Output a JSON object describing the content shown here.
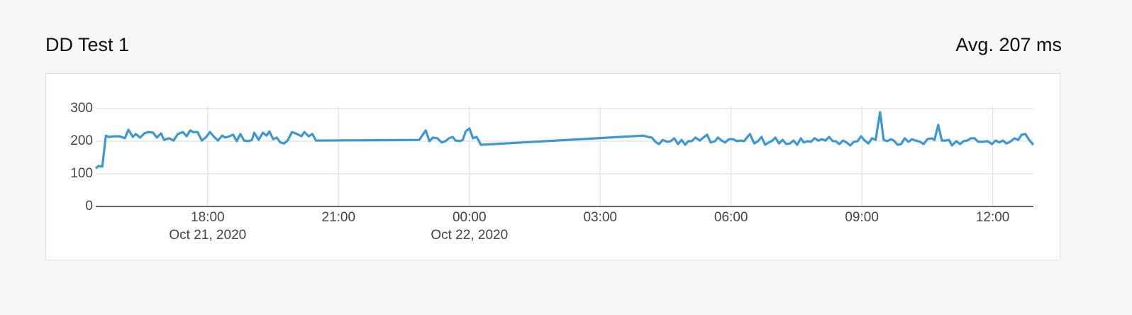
{
  "header": {
    "title": "DD Test 1",
    "summary": "Avg. 207 ms"
  },
  "chart_data": {
    "type": "line",
    "x": [
      "2020-10-21 15:26",
      "2020-10-21 15:30",
      "2020-10-21 15:35",
      "2020-10-21 15:40",
      "2020-10-21 15:44",
      "2020-10-21 15:51",
      "2020-10-21 15:59",
      "2020-10-21 16:06",
      "2020-10-21 16:11",
      "2020-10-21 16:17",
      "2020-10-21 16:21",
      "2020-10-21 16:27",
      "2020-10-21 16:33",
      "2020-10-21 16:38",
      "2020-10-21 16:45",
      "2020-10-21 16:50",
      "2020-10-21 16:56",
      "2020-10-21 17:00",
      "2020-10-21 17:07",
      "2020-10-21 17:13",
      "2020-10-21 17:19",
      "2020-10-21 17:26",
      "2020-10-21 17:31",
      "2020-10-21 17:36",
      "2020-10-21 17:40",
      "2020-10-21 17:46",
      "2020-10-21 17:52",
      "2020-10-21 17:58",
      "2020-10-21 18:03",
      "2020-10-21 18:09",
      "2020-10-21 18:14",
      "2020-10-21 18:20",
      "2020-10-21 18:24",
      "2020-10-21 18:30",
      "2020-10-21 18:35",
      "2020-10-21 18:40",
      "2020-10-21 18:45",
      "2020-10-21 18:50",
      "2020-10-21 18:56",
      "2020-10-21 19:01",
      "2020-10-21 19:04",
      "2020-10-21 19:10",
      "2020-10-21 19:16",
      "2020-10-21 19:21",
      "2020-10-21 19:25",
      "2020-10-21 19:30",
      "2020-10-21 19:35",
      "2020-10-21 19:40",
      "2020-10-21 19:45",
      "2020-10-21 19:50",
      "2020-10-21 19:56",
      "2020-10-21 20:03",
      "2020-10-21 20:09",
      "2020-10-21 20:13",
      "2020-10-21 20:19",
      "2020-10-21 20:24",
      "2020-10-21 20:29",
      "2020-10-21 22:51",
      "2020-10-21 23:00",
      "2020-10-21 23:05",
      "2020-10-21 23:10",
      "2020-10-21 23:16",
      "2020-10-21 23:22",
      "2020-10-21 23:27",
      "2020-10-21 23:32",
      "2020-10-21 23:37",
      "2020-10-21 23:41",
      "2020-10-21 23:47",
      "2020-10-21 23:51",
      "2020-10-21 23:55",
      "2020-10-22 00:00",
      "2020-10-22 00:05",
      "2020-10-22 00:10",
      "2020-10-22 00:16",
      "2020-10-22 03:59",
      "2020-10-22 04:06",
      "2020-10-22 04:11",
      "2020-10-22 04:16",
      "2020-10-22 04:21",
      "2020-10-22 04:26",
      "2020-10-22 04:32",
      "2020-10-22 04:37",
      "2020-10-22 04:42",
      "2020-10-22 04:47",
      "2020-10-22 04:52",
      "2020-10-22 04:57",
      "2020-10-22 05:01",
      "2020-10-22 05:06",
      "2020-10-22 05:11",
      "2020-10-22 05:17",
      "2020-10-22 05:22",
      "2020-10-22 05:27",
      "2020-10-22 05:32",
      "2020-10-22 05:38",
      "2020-10-22 05:42",
      "2020-10-22 05:47",
      "2020-10-22 05:52",
      "2020-10-22 05:57",
      "2020-10-22 06:03",
      "2020-10-22 06:08",
      "2020-10-22 06:13",
      "2020-10-22 06:18",
      "2020-10-22 06:22",
      "2020-10-22 06:26",
      "2020-10-22 06:32",
      "2020-10-22 06:37",
      "2020-10-22 06:42",
      "2020-10-22 06:47",
      "2020-10-22 06:52",
      "2020-10-22 06:57",
      "2020-10-22 07:01",
      "2020-10-22 07:06",
      "2020-10-22 07:11",
      "2020-10-22 07:16",
      "2020-10-22 07:21",
      "2020-10-22 07:26",
      "2020-10-22 07:31",
      "2020-10-22 07:36",
      "2020-10-22 07:40",
      "2020-10-22 07:45",
      "2020-10-22 07:50",
      "2020-10-22 07:55",
      "2020-10-22 08:00",
      "2020-10-22 08:05",
      "2020-10-22 08:10",
      "2020-10-22 08:15",
      "2020-10-22 08:20",
      "2020-10-22 08:24",
      "2020-10-22 08:29",
      "2020-10-22 08:34",
      "2020-10-22 08:39",
      "2020-10-22 08:44",
      "2020-10-22 08:49",
      "2020-10-22 08:54",
      "2020-10-22 08:59",
      "2020-10-22 09:03",
      "2020-10-22 09:09",
      "2020-10-22 09:14",
      "2020-10-22 09:19",
      "2020-10-22 09:25",
      "2020-10-22 09:30",
      "2020-10-22 09:35",
      "2020-10-22 09:40",
      "2020-10-22 09:44",
      "2020-10-22 09:49",
      "2020-10-22 09:54",
      "2020-10-22 09:59",
      "2020-10-22 10:04",
      "2020-10-22 10:09",
      "2020-10-22 10:14",
      "2020-10-22 10:20",
      "2020-10-22 10:25",
      "2020-10-22 10:30",
      "2020-10-22 10:36",
      "2020-10-22 10:40",
      "2020-10-22 10:45",
      "2020-10-22 10:50",
      "2020-10-22 10:55",
      "2020-10-22 11:00",
      "2020-10-22 11:04",
      "2020-10-22 11:10",
      "2020-10-22 11:15",
      "2020-10-22 11:20",
      "2020-10-22 11:25",
      "2020-10-22 11:30",
      "2020-10-22 11:35",
      "2020-10-22 11:40",
      "2020-10-22 11:46",
      "2020-10-22 11:53",
      "2020-10-22 11:59",
      "2020-10-22 12:04",
      "2020-10-22 12:09",
      "2020-10-22 12:14",
      "2020-10-22 12:19",
      "2020-10-22 12:24",
      "2020-10-22 12:30",
      "2020-10-22 12:35",
      "2020-10-22 12:40",
      "2020-10-22 12:45",
      "2020-10-22 12:50",
      "2020-10-22 12:56"
    ],
    "values": [
      117,
      124,
      122,
      217,
      213,
      215,
      215,
      209,
      235,
      213,
      222,
      211,
      224,
      228,
      226,
      211,
      224,
      204,
      209,
      202,
      222,
      228,
      215,
      233,
      228,
      228,
      202,
      213,
      228,
      213,
      202,
      217,
      211,
      215,
      220,
      200,
      222,
      202,
      200,
      204,
      226,
      204,
      226,
      217,
      230,
      206,
      211,
      196,
      193,
      202,
      228,
      222,
      215,
      228,
      215,
      222,
      202,
      204,
      233,
      200,
      211,
      209,
      196,
      200,
      209,
      213,
      202,
      200,
      204,
      230,
      239,
      209,
      213,
      189,
      217,
      213,
      211,
      198,
      191,
      204,
      198,
      200,
      209,
      191,
      204,
      189,
      200,
      200,
      211,
      202,
      211,
      220,
      196,
      200,
      211,
      202,
      196,
      206,
      206,
      200,
      202,
      200,
      211,
      222,
      193,
      200,
      213,
      189,
      196,
      202,
      211,
      193,
      204,
      191,
      193,
      202,
      189,
      209,
      196,
      200,
      198,
      209,
      202,
      206,
      202,
      213,
      200,
      200,
      191,
      202,
      196,
      187,
      198,
      200,
      215,
      204,
      193,
      209,
      204,
      289,
      204,
      200,
      206,
      202,
      189,
      191,
      209,
      198,
      206,
      202,
      198,
      191,
      206,
      209,
      204,
      250,
      202,
      202,
      204,
      187,
      200,
      191,
      200,
      202,
      209,
      209,
      198,
      198,
      200,
      191,
      202,
      196,
      202,
      193,
      198,
      209,
      204,
      220,
      222,
      204,
      189
    ],
    "color": "#3d97d3",
    "xlim": [
      "2020-10-21 15:26",
      "2020-10-22 12:56"
    ],
    "xticks": [
      {
        "value": "2020-10-21 18:00",
        "label": "18:00",
        "date": "Oct 21, 2020"
      },
      {
        "value": "2020-10-21 21:00",
        "label": "21:00"
      },
      {
        "value": "2020-10-22 00:00",
        "label": "00:00",
        "date": "Oct 22, 2020"
      },
      {
        "value": "2020-10-22 03:00",
        "label": "03:00"
      },
      {
        "value": "2020-10-22 06:00",
        "label": "06:00"
      },
      {
        "value": "2020-10-22 09:00",
        "label": "09:00"
      },
      {
        "value": "2020-10-22 12:00",
        "label": "12:00"
      }
    ],
    "ylim": [
      0,
      300
    ],
    "yticks": [
      0,
      100,
      200,
      300
    ],
    "grid": true
  }
}
